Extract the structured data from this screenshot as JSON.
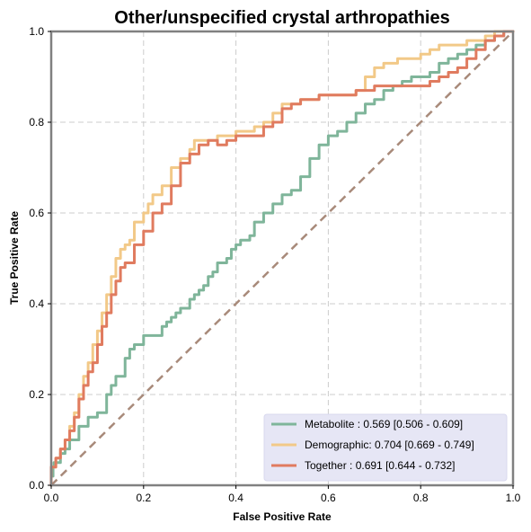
{
  "chart_data": {
    "type": "line",
    "title": "Other/unspecified crystal arthropathies",
    "xlabel": "False Positive Rate",
    "ylabel": "True Positive Rate",
    "xlim": [
      0,
      1
    ],
    "ylim": [
      0,
      1
    ],
    "xticks": [
      "0.0",
      "0.2",
      "0.4",
      "0.6",
      "0.8",
      "1.0"
    ],
    "yticks": [
      "0.0",
      "0.2",
      "0.4",
      "0.6",
      "0.8",
      "1.0"
    ],
    "grid": true,
    "legend_position": "lower-right",
    "series": [
      {
        "name": "Metabolite",
        "label": "Metabolite     : 0.569 [0.506 - 0.609]",
        "color": "#7fb59a",
        "x": [
          0,
          0.004,
          0.006,
          0.02,
          0.03,
          0.04,
          0.06,
          0.08,
          0.1,
          0.12,
          0.13,
          0.14,
          0.16,
          0.17,
          0.18,
          0.19,
          0.2,
          0.22,
          0.24,
          0.25,
          0.26,
          0.27,
          0.28,
          0.3,
          0.31,
          0.32,
          0.33,
          0.34,
          0.35,
          0.36,
          0.38,
          0.39,
          0.4,
          0.41,
          0.42,
          0.43,
          0.44,
          0.46,
          0.48,
          0.5,
          0.52,
          0.54,
          0.56,
          0.58,
          0.6,
          0.62,
          0.64,
          0.66,
          0.68,
          0.7,
          0.72,
          0.74,
          0.76,
          0.78,
          0.8,
          0.82,
          0.84,
          0.86,
          0.88,
          0.9,
          0.92,
          0.94,
          0.96,
          0.98,
          1.0
        ],
        "y": [
          0,
          0.02,
          0.04,
          0.05,
          0.07,
          0.08,
          0.1,
          0.13,
          0.15,
          0.16,
          0.2,
          0.22,
          0.24,
          0.28,
          0.3,
          0.31,
          0.31,
          0.33,
          0.33,
          0.35,
          0.36,
          0.37,
          0.38,
          0.39,
          0.41,
          0.42,
          0.43,
          0.44,
          0.46,
          0.47,
          0.49,
          0.5,
          0.52,
          0.53,
          0.54,
          0.54,
          0.55,
          0.58,
          0.6,
          0.62,
          0.64,
          0.65,
          0.68,
          0.72,
          0.75,
          0.77,
          0.78,
          0.8,
          0.82,
          0.84,
          0.85,
          0.87,
          0.88,
          0.89,
          0.9,
          0.9,
          0.91,
          0.93,
          0.94,
          0.95,
          0.96,
          0.97,
          0.98,
          0.99,
          1.0
        ]
      },
      {
        "name": "Demographic",
        "label": "Demographic: 0.704 [0.669 - 0.749]",
        "color": "#f2c988",
        "x": [
          0,
          0.01,
          0.02,
          0.03,
          0.04,
          0.05,
          0.06,
          0.07,
          0.08,
          0.09,
          0.1,
          0.11,
          0.12,
          0.13,
          0.14,
          0.15,
          0.16,
          0.17,
          0.18,
          0.2,
          0.21,
          0.22,
          0.24,
          0.26,
          0.28,
          0.3,
          0.31,
          0.32,
          0.34,
          0.36,
          0.38,
          0.4,
          0.42,
          0.44,
          0.46,
          0.48,
          0.5,
          0.52,
          0.54,
          0.56,
          0.58,
          0.6,
          0.62,
          0.64,
          0.66,
          0.68,
          0.7,
          0.72,
          0.74,
          0.75,
          0.76,
          0.78,
          0.8,
          0.82,
          0.84,
          0.86,
          0.88,
          0.9,
          0.92,
          0.94,
          0.96,
          0.98,
          1.0
        ],
        "y": [
          0,
          0.04,
          0.06,
          0.08,
          0.1,
          0.13,
          0.16,
          0.2,
          0.24,
          0.27,
          0.31,
          0.34,
          0.38,
          0.42,
          0.46,
          0.5,
          0.52,
          0.53,
          0.54,
          0.58,
          0.6,
          0.62,
          0.64,
          0.66,
          0.7,
          0.72,
          0.74,
          0.76,
          0.76,
          0.76,
          0.77,
          0.77,
          0.78,
          0.78,
          0.79,
          0.8,
          0.82,
          0.84,
          0.84,
          0.85,
          0.85,
          0.86,
          0.86,
          0.86,
          0.86,
          0.87,
          0.9,
          0.92,
          0.93,
          0.93,
          0.94,
          0.94,
          0.94,
          0.95,
          0.96,
          0.97,
          0.97,
          0.97,
          0.98,
          0.98,
          0.99,
          1.0,
          1.0
        ]
      },
      {
        "name": "Together",
        "label": "Together       : 0.691 [0.644 - 0.732]",
        "color": "#e07b5f",
        "x": [
          0,
          0.01,
          0.02,
          0.03,
          0.04,
          0.05,
          0.06,
          0.07,
          0.08,
          0.09,
          0.1,
          0.11,
          0.12,
          0.13,
          0.14,
          0.15,
          0.16,
          0.17,
          0.18,
          0.2,
          0.22,
          0.24,
          0.26,
          0.28,
          0.3,
          0.32,
          0.34,
          0.36,
          0.38,
          0.4,
          0.42,
          0.44,
          0.46,
          0.48,
          0.5,
          0.52,
          0.54,
          0.56,
          0.58,
          0.6,
          0.62,
          0.64,
          0.66,
          0.68,
          0.7,
          0.72,
          0.74,
          0.76,
          0.78,
          0.8,
          0.82,
          0.84,
          0.86,
          0.88,
          0.9,
          0.92,
          0.94,
          0.96,
          0.98,
          1.0
        ],
        "y": [
          0,
          0.04,
          0.06,
          0.08,
          0.1,
          0.12,
          0.15,
          0.19,
          0.22,
          0.25,
          0.27,
          0.31,
          0.35,
          0.38,
          0.42,
          0.45,
          0.48,
          0.49,
          0.49,
          0.53,
          0.56,
          0.6,
          0.62,
          0.66,
          0.71,
          0.73,
          0.75,
          0.76,
          0.75,
          0.76,
          0.77,
          0.77,
          0.77,
          0.79,
          0.8,
          0.83,
          0.84,
          0.85,
          0.85,
          0.86,
          0.86,
          0.86,
          0.86,
          0.87,
          0.87,
          0.88,
          0.88,
          0.88,
          0.88,
          0.88,
          0.88,
          0.89,
          0.9,
          0.91,
          0.92,
          0.94,
          0.96,
          0.98,
          0.99,
          1.0
        ]
      }
    ],
    "diagonal": {
      "color": "#a88a7a"
    }
  },
  "colors": {
    "legend_background": "#e6e6f5",
    "legend_border": "#d8d8ee",
    "frame": "#808080",
    "grid": "#cccccc"
  }
}
